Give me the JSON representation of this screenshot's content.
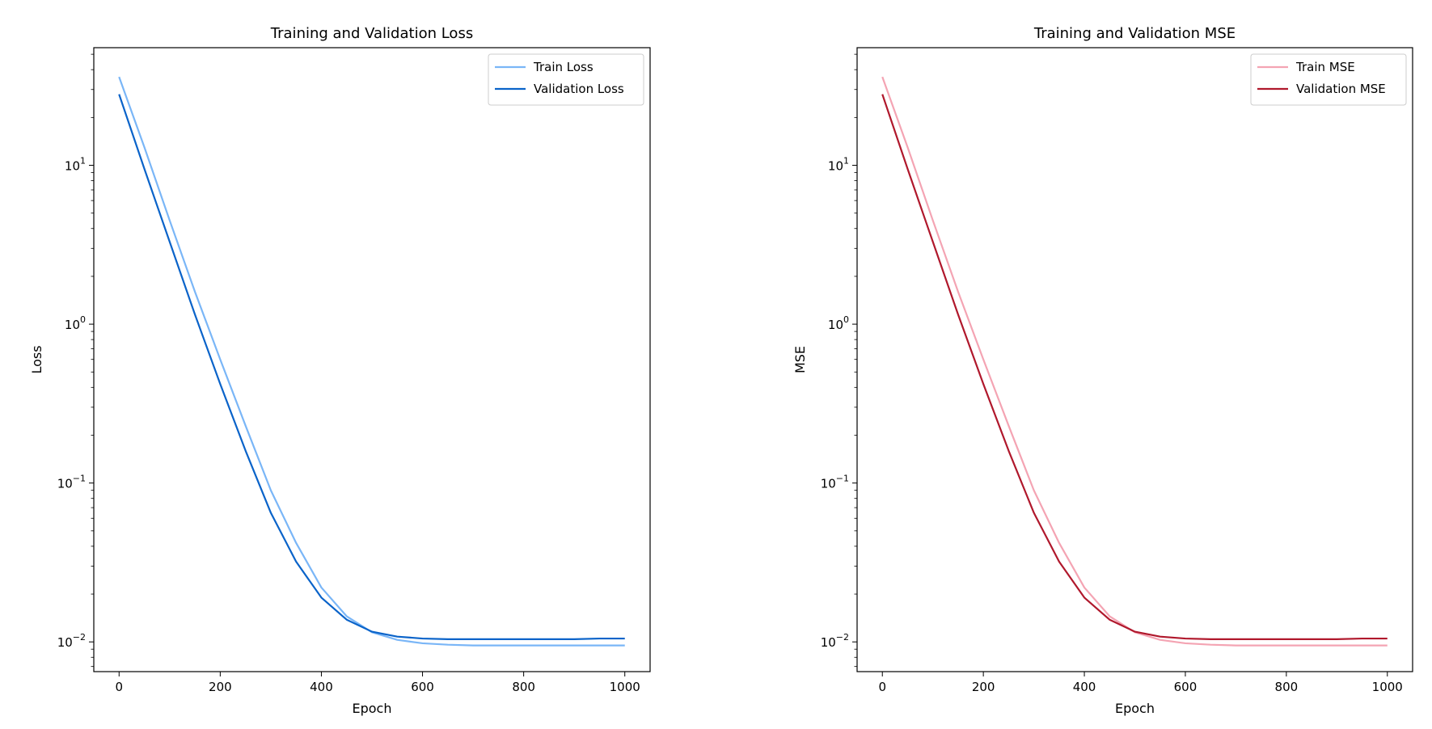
{
  "chart_data": [
    {
      "type": "line",
      "title": "Training and Validation Loss",
      "xlabel": "Epoch",
      "ylabel": "Loss",
      "yscale": "log",
      "xlim": [
        -50,
        1050
      ],
      "ylim": [
        0.0065,
        55
      ],
      "grid": false,
      "legend_position": "top-right",
      "x_ticks": [
        {
          "value": 0,
          "label": "0"
        },
        {
          "value": 200,
          "label": "200"
        },
        {
          "value": 400,
          "label": "400"
        },
        {
          "value": 600,
          "label": "600"
        },
        {
          "value": 800,
          "label": "800"
        },
        {
          "value": 1000,
          "label": "1000"
        }
      ],
      "y_ticks": [
        {
          "value": 0.01,
          "base": "10",
          "exp": "−2"
        },
        {
          "value": 0.1,
          "base": "10",
          "exp": "−1"
        },
        {
          "value": 1,
          "base": "10",
          "exp": "0"
        },
        {
          "value": 10,
          "base": "10",
          "exp": "1"
        }
      ],
      "series": [
        {
          "name": "Train Loss",
          "color": "#7ab6f7",
          "x": [
            0,
            50,
            100,
            150,
            200,
            250,
            300,
            350,
            400,
            450,
            500,
            550,
            600,
            650,
            700,
            750,
            800,
            850,
            900,
            950,
            1000
          ],
          "y": [
            36,
            13,
            4.5,
            1.6,
            0.6,
            0.23,
            0.09,
            0.042,
            0.022,
            0.0145,
            0.0115,
            0.0103,
            0.0098,
            0.0096,
            0.0095,
            0.0095,
            0.0095,
            0.0095,
            0.0095,
            0.0095,
            0.0095
          ]
        },
        {
          "name": "Validation Loss",
          "color": "#0a63c9",
          "x": [
            0,
            50,
            100,
            150,
            200,
            250,
            300,
            350,
            400,
            450,
            500,
            550,
            600,
            650,
            700,
            750,
            800,
            850,
            900,
            950,
            1000
          ],
          "y": [
            28,
            9.5,
            3.3,
            1.15,
            0.42,
            0.16,
            0.065,
            0.032,
            0.019,
            0.0138,
            0.0116,
            0.0108,
            0.0105,
            0.0104,
            0.0104,
            0.0104,
            0.0104,
            0.0104,
            0.0104,
            0.0105,
            0.0105
          ]
        }
      ]
    },
    {
      "type": "line",
      "title": "Training and Validation MSE",
      "xlabel": "Epoch",
      "ylabel": "MSE",
      "yscale": "log",
      "xlim": [
        -50,
        1050
      ],
      "ylim": [
        0.0065,
        55
      ],
      "grid": false,
      "legend_position": "top-right",
      "x_ticks": [
        {
          "value": 0,
          "label": "0"
        },
        {
          "value": 200,
          "label": "200"
        },
        {
          "value": 400,
          "label": "400"
        },
        {
          "value": 600,
          "label": "600"
        },
        {
          "value": 800,
          "label": "800"
        },
        {
          "value": 1000,
          "label": "1000"
        }
      ],
      "y_ticks": [
        {
          "value": 0.01,
          "base": "10",
          "exp": "−2"
        },
        {
          "value": 0.1,
          "base": "10",
          "exp": "−1"
        },
        {
          "value": 1,
          "base": "10",
          "exp": "0"
        },
        {
          "value": 10,
          "base": "10",
          "exp": "1"
        }
      ],
      "series": [
        {
          "name": "Train MSE",
          "color": "#f4a4b3",
          "x": [
            0,
            50,
            100,
            150,
            200,
            250,
            300,
            350,
            400,
            450,
            500,
            550,
            600,
            650,
            700,
            750,
            800,
            850,
            900,
            950,
            1000
          ],
          "y": [
            36,
            13,
            4.5,
            1.6,
            0.6,
            0.23,
            0.09,
            0.042,
            0.022,
            0.0145,
            0.0115,
            0.0103,
            0.0098,
            0.0096,
            0.0095,
            0.0095,
            0.0095,
            0.0095,
            0.0095,
            0.0095,
            0.0095
          ]
        },
        {
          "name": "Validation MSE",
          "color": "#b0182c",
          "x": [
            0,
            50,
            100,
            150,
            200,
            250,
            300,
            350,
            400,
            450,
            500,
            550,
            600,
            650,
            700,
            750,
            800,
            850,
            900,
            950,
            1000
          ],
          "y": [
            28,
            9.5,
            3.3,
            1.15,
            0.42,
            0.16,
            0.065,
            0.032,
            0.019,
            0.0138,
            0.0116,
            0.0108,
            0.0105,
            0.0104,
            0.0104,
            0.0104,
            0.0104,
            0.0104,
            0.0104,
            0.0105,
            0.0105
          ]
        }
      ]
    }
  ]
}
